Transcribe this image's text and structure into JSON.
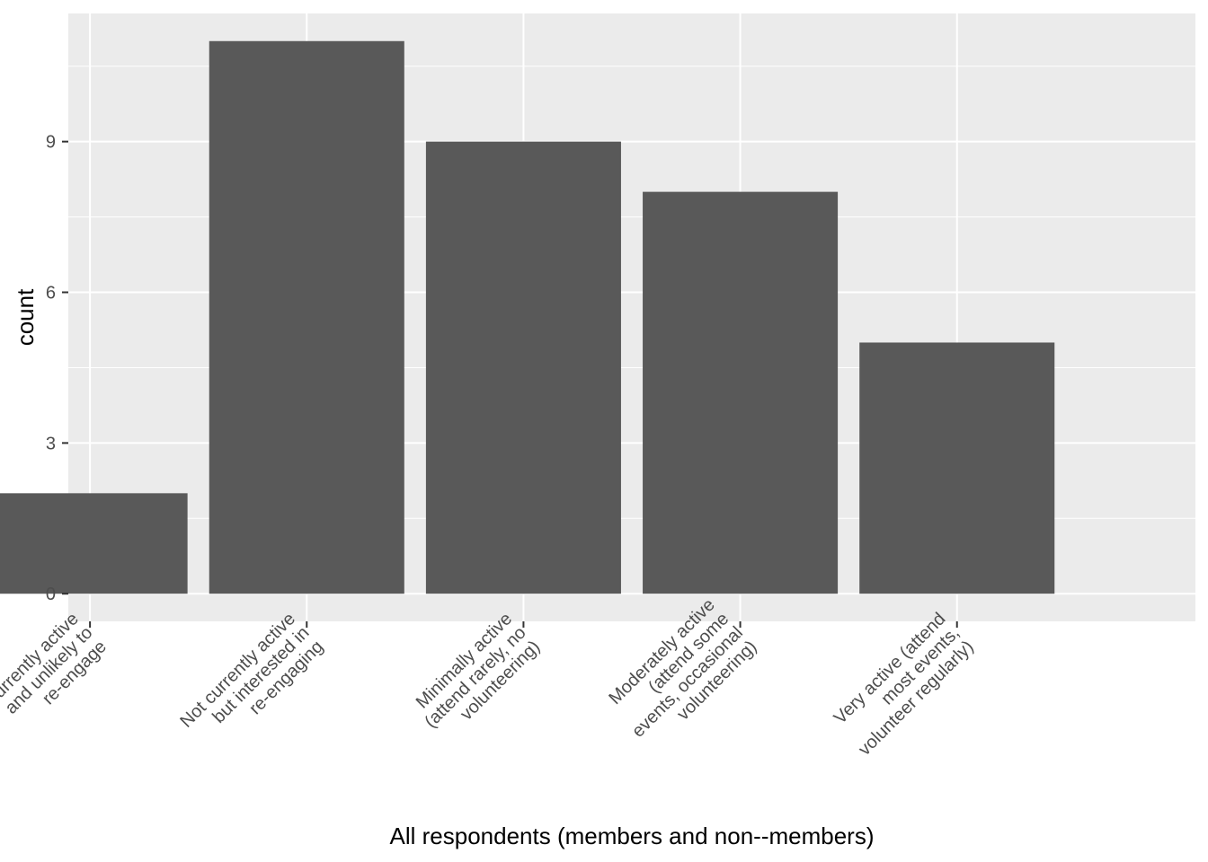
{
  "chart_data": {
    "type": "bar",
    "title": "",
    "xlabel": "All respondents (members and non--members)",
    "ylabel": "count",
    "categories": [
      [
        "Not currently active",
        "and unlikely to",
        "re-engage"
      ],
      [
        "Not currently active",
        "but interested in",
        "re-engaging"
      ],
      [
        "Minimally active",
        "(attend rarely, no",
        "volunteering)"
      ],
      [
        "Moderately active",
        "(attend some",
        "events, occasional",
        "volunteering)"
      ],
      [
        "Very active (attend",
        "most events,",
        "volunteer regularly)"
      ]
    ],
    "values": [
      2,
      11,
      9,
      8,
      5
    ],
    "ylim": [
      -0.55,
      11.55
    ],
    "yticks": [
      0,
      3,
      6,
      9
    ],
    "grid": true,
    "colors": {
      "panel": "#ebebeb",
      "grid": "#ffffff",
      "bar": "#595959",
      "tick_text": "#4d4d4d",
      "tick_mark": "#333333",
      "title_text": "#000000"
    }
  }
}
